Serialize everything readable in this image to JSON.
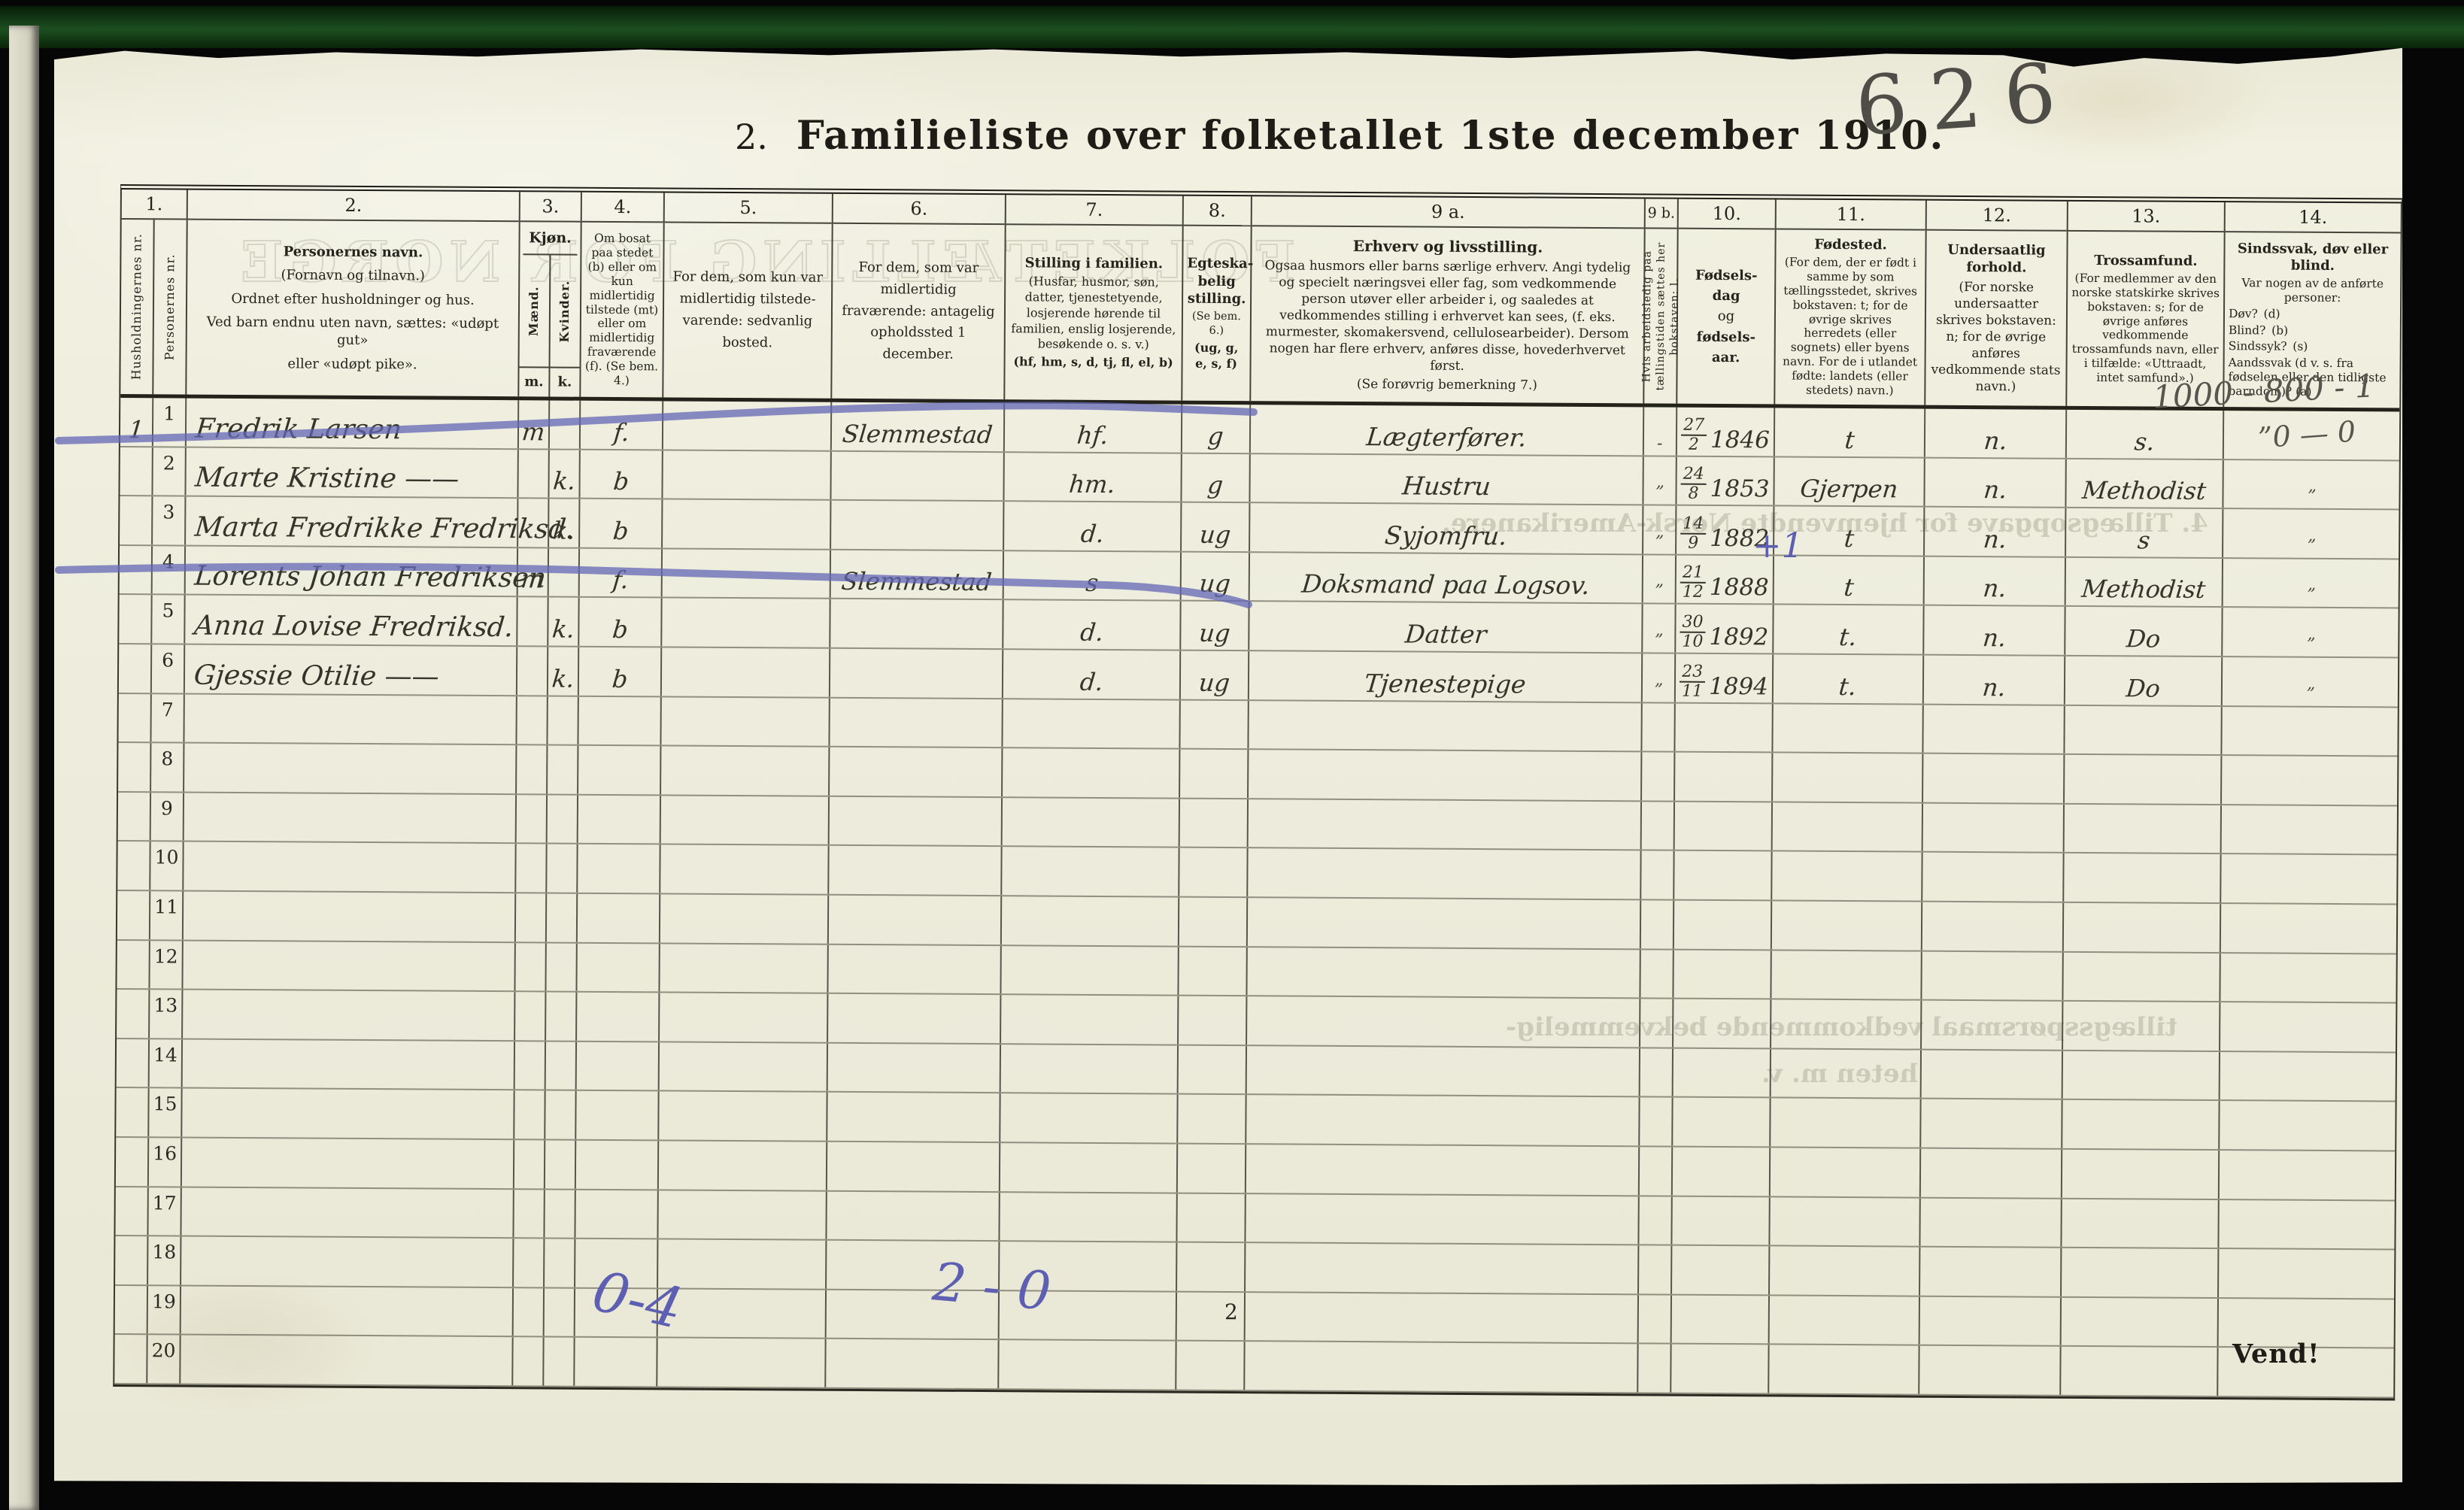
{
  "document": {
    "title_prefix": "2.",
    "title": "Familieliste over folketallet 1ste december 1910.",
    "corner_number": "626",
    "page_number": "2",
    "turn_note": "Vend!",
    "pencil_tally_line1": "1000 - 800 - 1",
    "pencil_tally_line2": "”0 — 0",
    "blue_tally_left": "0-4",
    "blue_tally_mid": "2 - 0",
    "blue_row4_note": "+1"
  },
  "colors": {
    "paper": "#efeede",
    "ink": "#35342b",
    "blue_pencil": "#5d5fb2",
    "graphite": "#57564e",
    "scan_border_green": "#1c4f20"
  },
  "ghosts": {
    "header": "FOLKETÆLLING FOR NORGE",
    "mid": "4. Tillægsopgave for hjemvendte Norsk-Amerikanere.",
    "lower1": "tillægsspørsmaal vedkommende bekvemmelig-",
    "lower2": "heten m. v."
  },
  "table": {
    "columns": {
      "g1": {
        "num": "1.",
        "a": "Husholdningernes nr.",
        "b": "Personernes nr."
      },
      "g2": {
        "num": "2.",
        "title": "Personernes navn.",
        "lines": [
          "(Fornavn og tilnavn.)",
          "Ordnet efter husholdninger og hus.",
          "Ved barn endnu uten navn, sættes: «udøpt gut»",
          "eller «udøpt pike»."
        ]
      },
      "g3": {
        "num": "3.",
        "title": "Kjøn.",
        "m": "Mænd.",
        "f": "Kvinder.",
        "m_ab": "m.",
        "f_ab": "k."
      },
      "g4": {
        "num": "4.",
        "text": "Om bosat paa stedet (b) eller om kun midlertidig tilstede (mt) eller om midlertidig fraværende (f). (Se bem. 4.)"
      },
      "g5": {
        "num": "5.",
        "text": "For dem, som kun var midlertidig tilstede­varende: sedvanlig bosted."
      },
      "g6": {
        "num": "6.",
        "text": "For dem, som var midlertidig fraværende: antagelig opholdssted 1 december."
      },
      "g7": {
        "num": "7.",
        "title": "Stilling i familien.",
        "text": "(Husfar, husmor, søn, datter, tjenestetyende, losjerende hørende til familien, enslig losjerende, besøkende o. s. v.)",
        "codes": "(hf, hm, s, d, tj, fl, el, b)"
      },
      "g8": {
        "num": "8.",
        "title": "Egteska­belig stilling.",
        "note": "(Se bem. 6.)",
        "codes": "(ug, g, e, s, f)"
      },
      "g9a": {
        "num": "9 a.",
        "title": "Erhverv og livsstilling.",
        "text": "Ogsaa husmors eller barns særlige erhverv. Angi tydelig og specielt næringsvei eller fag, som vedkommende person utøver eller arbeider i, og saaledes at vedkommendes stilling i erhvervet kan sees, (f. eks. murmester, skomakersvend, cellulosearbeider). Dersom nogen har flere erhverv, anføres disse, hovederhvervet først.",
        "note": "(Se forøvrig bemerkning 7.)"
      },
      "g9b": {
        "num": "9 b.",
        "text": "Hvis arbeidsledig paa tællingstiden sættes her bokstaven: l."
      },
      "g10": {
        "num": "10.",
        "lines": [
          "Fødsels-",
          "dag",
          "og",
          "fødsels-",
          "aar."
        ]
      },
      "g11": {
        "num": "11.",
        "title": "Fødested.",
        "text": "(For dem, der er født i samme by som tællingsstedet, skrives bokstaven: t; for de øvrige skrives herredets (eller sognets) eller byens navn. For de i utlandet fødte: landets (eller stedets) navn.)"
      },
      "g12": {
        "num": "12.",
        "title": "Undersaatlig forhold.",
        "text": "(For norske undersaatter skrives bokstaven: n; for de øvrige anføres vedkommende stats navn.)"
      },
      "g13": {
        "num": "13.",
        "title": "Trossamfund.",
        "text": "(For medlemmer av den norske statskirke skrives bokstaven: s; for de øvrige anføres vedkommende trossamfunds navn, eller i tilfælde: «Uttraadt, intet samfund».)"
      },
      "g14": {
        "num": "14.",
        "title": "Sindssvak, døv eller blind.",
        "text": "Var nogen av de anførte personer:",
        "items": [
          "Døv? (d)",
          "Blind? (b)",
          "Sindssyk? (s)",
          "Aandssvak (d v. s. fra fødselen eller den tidligste barndom)? (a)"
        ]
      }
    },
    "rows": [
      {
        "hh": "1",
        "nr": "1",
        "name": "Fredrik Larsen",
        "m": "m",
        "k": "",
        "res": "f.",
        "abode": "",
        "away": "Slemmestad",
        "pos": "hf.",
        "mar": "g",
        "occ": "Lægterfører.",
        "occ_blue": "",
        "unemp": "-",
        "bd": "27",
        "bm": "2",
        "by": "1846",
        "birth_note": "",
        "birthplace": "t",
        "citizen": "n.",
        "faith": "s.",
        "dis": ""
      },
      {
        "hh": "",
        "nr": "2",
        "name": "Marte Kristine ——",
        "m": "",
        "k": "k.",
        "res": "b",
        "abode": "",
        "away": "",
        "pos": "hm.",
        "mar": "g",
        "occ": "Hustru",
        "occ_blue": "",
        "unemp": "”",
        "bd": "24",
        "bm": "8",
        "by": "1853",
        "birth_note": "",
        "birthplace": "Gjerpen",
        "citizen": "n.",
        "faith": "Methodist",
        "dis": "”"
      },
      {
        "hh": "",
        "nr": "3",
        "name": "Marta Fredrikke Fredriksd.",
        "m": "",
        "k": "k.",
        "res": "b",
        "abode": "",
        "away": "",
        "pos": "d.",
        "mar": "ug",
        "occ": "Syjomfru.",
        "occ_blue": "",
        "unemp": "”",
        "bd": "14",
        "bm": "9",
        "by": "1882",
        "birth_note": "",
        "birthplace": "t",
        "citizen": "n.",
        "faith": "s",
        "dis": "”"
      },
      {
        "hh": "",
        "nr": "4",
        "name": "Lorents Johan Fredriksen",
        "m": "m",
        "k": "",
        "res": "f.",
        "abode": "",
        "away": "Slemmestad",
        "pos": "s",
        "mar": "ug",
        "occ": "Doksmand",
        "occ_blue": "paa Logsov.",
        "unemp": "”",
        "bd": "21",
        "bm": "12",
        "by": "1888",
        "birth_note": "+1",
        "birthplace": "t",
        "citizen": "n.",
        "faith": "Methodist",
        "dis": "”"
      },
      {
        "hh": "",
        "nr": "5",
        "name": "Anna Lovise Fredriksd.",
        "m": "",
        "k": "k.",
        "res": "b",
        "abode": "",
        "away": "",
        "pos": "d.",
        "mar": "ug",
        "occ": "Datter",
        "occ_blue": "",
        "unemp": "”",
        "bd": "30",
        "bm": "10",
        "by": "1892",
        "birth_note": "",
        "birthplace": "t.",
        "citizen": "n.",
        "faith": "Do",
        "dis": "”"
      },
      {
        "hh": "",
        "nr": "6",
        "name": "Gjessie Otilie ——",
        "m": "",
        "k": "k.",
        "res": "b",
        "abode": "",
        "away": "",
        "pos": "d.",
        "mar": "ug",
        "occ": "Tjenestepige",
        "occ_blue": "",
        "unemp": "”",
        "bd": "23",
        "bm": "11",
        "by": "1894",
        "birth_note": "",
        "birthplace": "t.",
        "citizen": "n.",
        "faith": "Do",
        "dis": "”"
      },
      {
        "hh": "",
        "nr": "7"
      },
      {
        "hh": "",
        "nr": "8"
      },
      {
        "hh": "",
        "nr": "9"
      },
      {
        "hh": "",
        "nr": "10"
      },
      {
        "hh": "",
        "nr": "11"
      },
      {
        "hh": "",
        "nr": "12"
      },
      {
        "hh": "",
        "nr": "13"
      },
      {
        "hh": "",
        "nr": "14"
      },
      {
        "hh": "",
        "nr": "15"
      },
      {
        "hh": "",
        "nr": "16"
      },
      {
        "hh": "",
        "nr": "17"
      },
      {
        "hh": "",
        "nr": "18"
      },
      {
        "hh": "",
        "nr": "19"
      },
      {
        "hh": "",
        "nr": "20"
      }
    ]
  }
}
